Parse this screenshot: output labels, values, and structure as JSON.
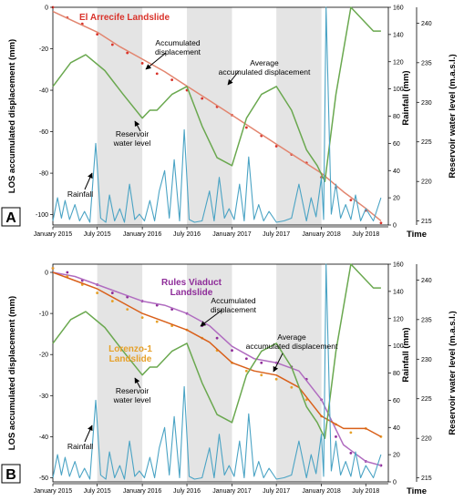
{
  "chart_data": [
    {
      "panel_label": "A",
      "type": "line",
      "title": "El Arrecife Landslide",
      "title_color": "#d9332b",
      "xlabel": "Time",
      "x_ticks": [
        "January 2015",
        "July 2015",
        "January 2016",
        "July 2016",
        "January 2017",
        "July 2017",
        "January 2018",
        "July 2018"
      ],
      "xlim": [
        "2015-01-01",
        "2018-10-01"
      ],
      "y_left": {
        "label": "LOS accumulated displacement (mm)",
        "range": [
          -105,
          0
        ],
        "ticks": [
          -100,
          -80,
          -60,
          -40,
          -20,
          0
        ]
      },
      "y_rain": {
        "label": "Rainfall (mm)",
        "range": [
          0,
          160
        ],
        "ticks": [
          0,
          20,
          40,
          60,
          80,
          100,
          120,
          140,
          160
        ]
      },
      "y_res": {
        "label": "Reservoir water level (m.a.s.l.)",
        "range": [
          214.5,
          242
        ],
        "ticks": [
          215,
          220,
          225,
          230,
          235,
          240
        ]
      },
      "shaded_periods": [
        [
          "2015-07-01",
          "2016-01-01"
        ],
        [
          "2016-07-01",
          "2017-01-01"
        ],
        [
          "2017-07-01",
          "2018-01-01"
        ]
      ],
      "grid": false,
      "series": [
        {
          "id": "disp",
          "name": "Accumulated displacement",
          "color": "#d9332b",
          "mode": "markers",
          "x": [
            "2015-01-01",
            "2015-03-01",
            "2015-05-01",
            "2015-07-01",
            "2015-09-01",
            "2015-11-01",
            "2016-01-01",
            "2016-03-01",
            "2016-05-01",
            "2016-07-01",
            "2016-09-01",
            "2016-11-01",
            "2017-01-01",
            "2017-03-01",
            "2017-05-01",
            "2017-07-01",
            "2017-09-01",
            "2017-11-01",
            "2018-01-01",
            "2018-03-01",
            "2018-05-01",
            "2018-07-01",
            "2018-09-01"
          ],
          "y": [
            0,
            -5,
            -8,
            -13,
            -18,
            -22,
            -27,
            -32,
            -35,
            -40,
            -44,
            -48,
            -52,
            -58,
            -62,
            -67,
            -71,
            -75,
            -82,
            -87,
            -93,
            -98,
            -104
          ]
        },
        {
          "id": "avg",
          "name": "Average accumulated displacement",
          "color": "#e2856f",
          "mode": "line",
          "x": [
            "2015-01-01",
            "2015-04-01",
            "2015-07-01",
            "2015-10-01",
            "2016-01-01",
            "2016-04-01",
            "2016-07-01",
            "2016-10-01",
            "2017-01-01",
            "2017-04-01",
            "2017-07-01",
            "2017-10-01",
            "2018-01-01",
            "2018-04-01",
            "2018-07-01",
            "2018-09-01"
          ],
          "y": [
            -2,
            -7,
            -12,
            -19,
            -25,
            -31,
            -38,
            -45,
            -52,
            -59,
            -66,
            -73,
            -80,
            -89,
            -97,
            -103
          ]
        },
        {
          "id": "res",
          "name": "Reservoir water level",
          "color": "#6aa84f",
          "axis": "y_res",
          "mode": "line",
          "x": [
            "2015-01-01",
            "2015-03-15",
            "2015-05-15",
            "2015-08-01",
            "2015-10-15",
            "2016-01-01",
            "2016-02-01",
            "2016-03-01",
            "2016-05-01",
            "2016-07-01",
            "2016-09-01",
            "2016-11-01",
            "2017-01-01",
            "2017-03-01",
            "2017-05-01",
            "2017-07-01",
            "2017-09-01",
            "2017-11-01",
            "2017-12-15",
            "2018-01-15",
            "2018-03-01",
            "2018-05-01",
            "2018-07-01",
            "2018-08-01",
            "2018-09-01"
          ],
          "y": [
            232,
            235,
            236,
            234,
            231,
            228,
            229,
            229,
            231,
            232,
            227,
            223,
            222,
            228,
            231,
            232,
            229,
            224,
            222,
            220,
            231,
            242,
            240,
            239,
            239
          ]
        },
        {
          "id": "rain",
          "name": "Rainfall",
          "color": "#4aa3c4",
          "axis": "y_rain",
          "mode": "line",
          "x": [
            "2015-01-01",
            "2015-01-20",
            "2015-02-05",
            "2015-02-20",
            "2015-03-10",
            "2015-04-01",
            "2015-04-20",
            "2015-05-10",
            "2015-06-01",
            "2015-06-25",
            "2015-07-15",
            "2015-08-05",
            "2015-08-20",
            "2015-09-10",
            "2015-10-01",
            "2015-10-20",
            "2015-11-10",
            "2015-12-01",
            "2015-12-20",
            "2016-01-10",
            "2016-02-01",
            "2016-02-20",
            "2016-03-10",
            "2016-04-01",
            "2016-04-20",
            "2016-05-10",
            "2016-06-01",
            "2016-06-20",
            "2016-07-10",
            "2016-08-01",
            "2016-09-01",
            "2016-10-01",
            "2016-10-20",
            "2016-11-10",
            "2016-12-01",
            "2016-12-20",
            "2017-01-10",
            "2017-02-01",
            "2017-02-20",
            "2017-03-10",
            "2017-04-01",
            "2017-04-20",
            "2017-05-10",
            "2017-06-01",
            "2017-07-01",
            "2017-08-01",
            "2017-09-01",
            "2017-10-01",
            "2017-11-01",
            "2017-11-20",
            "2017-12-10",
            "2018-01-01",
            "2018-01-10",
            "2018-01-20",
            "2018-02-10",
            "2018-03-01",
            "2018-03-20",
            "2018-04-10",
            "2018-05-01",
            "2018-05-20",
            "2018-06-10",
            "2018-07-01",
            "2018-08-01",
            "2018-09-01"
          ],
          "y": [
            3,
            20,
            5,
            18,
            4,
            15,
            3,
            10,
            2,
            60,
            5,
            2,
            22,
            3,
            12,
            2,
            30,
            4,
            8,
            3,
            18,
            3,
            25,
            40,
            5,
            48,
            3,
            70,
            4,
            2,
            3,
            25,
            3,
            35,
            5,
            12,
            4,
            30,
            3,
            50,
            4,
            15,
            3,
            10,
            2,
            3,
            5,
            30,
            3,
            20,
            6,
            35,
            4,
            160,
            8,
            30,
            5,
            15,
            4,
            22,
            3,
            12,
            3,
            20
          ]
        }
      ],
      "annotations": [
        "Accumulated displacement",
        "Average accumulated displacement",
        "Reservoir water level",
        "Rainfall"
      ]
    },
    {
      "panel_label": "B",
      "type": "line",
      "title": "Rules Viaduct Landslide",
      "title_color": "#8e2c99",
      "title2": "Lorenzo-1 Landslide",
      "title2_color": "#e6a12a",
      "xlabel": "Time",
      "x_ticks": [
        "January 2015",
        "July 2015",
        "January 2016",
        "July 2016",
        "January 2017",
        "July 2017",
        "January 2018",
        "July 2018"
      ],
      "xlim": [
        "2015-01-01",
        "2018-10-01"
      ],
      "y_left": {
        "label": "LOS accumulated displacement (mm)",
        "range": [
          -51,
          2
        ],
        "ticks": [
          -50,
          -40,
          -30,
          -20,
          -10,
          0
        ]
      },
      "y_rain": {
        "label": "Rainfall (mm)",
        "range": [
          0,
          160
        ],
        "ticks": [
          0,
          20,
          40,
          60,
          80,
          100,
          120,
          140,
          160
        ]
      },
      "y_res": {
        "label": "Reservoir water level (m.a.s.l.)",
        "range": [
          214.5,
          242
        ],
        "ticks": [
          215,
          220,
          225,
          230,
          235,
          240
        ]
      },
      "shaded_periods": [
        [
          "2015-07-01",
          "2016-01-01"
        ],
        [
          "2016-07-01",
          "2017-01-01"
        ],
        [
          "2017-07-01",
          "2018-01-01"
        ]
      ],
      "grid": false,
      "series": [
        {
          "id": "rules_pts",
          "name": "Rules Viaduct accumulated displacement",
          "color": "#8e2c99",
          "mode": "markers",
          "x": [
            "2015-01-01",
            "2015-03-01",
            "2015-05-01",
            "2015-07-01",
            "2015-09-01",
            "2015-11-01",
            "2016-01-01",
            "2016-03-01",
            "2016-05-01",
            "2016-07-01",
            "2016-09-01",
            "2016-11-01",
            "2017-01-01",
            "2017-03-01",
            "2017-05-01",
            "2017-07-01",
            "2017-09-01",
            "2017-11-01",
            "2018-01-01",
            "2018-03-01",
            "2018-05-01",
            "2018-07-01",
            "2018-09-01"
          ],
          "y": [
            1,
            0,
            -2,
            -3,
            -5,
            -6,
            -7,
            -8,
            -9,
            -10,
            -13,
            -16,
            -19,
            -21,
            -22,
            -22,
            -23,
            -26,
            -31,
            -40,
            -44,
            -46,
            -47
          ]
        },
        {
          "id": "rules_avg",
          "name": "Rules Viaduct average accumulated displacement",
          "color": "#b06cc0",
          "mode": "line",
          "x": [
            "2015-01-01",
            "2015-04-01",
            "2015-07-01",
            "2015-10-01",
            "2016-01-01",
            "2016-04-01",
            "2016-07-01",
            "2016-10-01",
            "2017-01-01",
            "2017-04-01",
            "2017-07-01",
            "2017-10-01",
            "2018-01-01",
            "2018-04-01",
            "2018-07-01",
            "2018-09-01"
          ],
          "y": [
            0,
            -1,
            -3,
            -5,
            -7,
            -8,
            -10,
            -13,
            -18,
            -21,
            -22,
            -24,
            -31,
            -42,
            -46,
            -47
          ]
        },
        {
          "id": "lor_pts",
          "name": "Lorenzo-1 accumulated displacement",
          "color": "#e6a12a",
          "mode": "markers",
          "x": [
            "2015-01-01",
            "2015-03-01",
            "2015-05-01",
            "2015-07-01",
            "2015-09-01",
            "2015-11-01",
            "2016-01-01",
            "2016-03-01",
            "2016-05-01",
            "2016-07-01",
            "2016-09-01",
            "2016-11-01",
            "2017-01-01",
            "2017-03-01",
            "2017-05-01",
            "2017-07-01",
            "2017-09-01",
            "2017-11-01",
            "2018-01-01",
            "2018-03-01",
            "2018-05-01",
            "2018-07-01",
            "2018-09-01"
          ],
          "y": [
            1,
            -1,
            -3,
            -5,
            -7,
            -9,
            -11,
            -12,
            -13,
            -14,
            -16,
            -19,
            -22,
            -24,
            -25,
            -26,
            -28,
            -31,
            -35,
            -37,
            -39,
            -38,
            -40
          ]
        },
        {
          "id": "lor_avg",
          "name": "Lorenzo-1 average accumulated displacement",
          "color": "#d9601a",
          "mode": "line",
          "x": [
            "2015-01-01",
            "2015-04-01",
            "2015-07-01",
            "2015-10-01",
            "2016-01-01",
            "2016-04-01",
            "2016-07-01",
            "2016-10-01",
            "2017-01-01",
            "2017-04-01",
            "2017-07-01",
            "2017-10-01",
            "2018-01-01",
            "2018-04-01",
            "2018-07-01",
            "2018-09-01"
          ],
          "y": [
            0,
            -2,
            -4,
            -7,
            -10,
            -12,
            -14,
            -17,
            -22,
            -24,
            -25,
            -28,
            -35,
            -38,
            -38,
            -40
          ]
        },
        {
          "id": "res",
          "name": "Reservoir water level",
          "color": "#6aa84f",
          "axis": "y_res",
          "mode": "line",
          "x": [
            "2015-01-01",
            "2015-03-15",
            "2015-05-15",
            "2015-08-01",
            "2015-10-15",
            "2016-01-01",
            "2016-02-01",
            "2016-03-01",
            "2016-05-01",
            "2016-07-01",
            "2016-09-01",
            "2016-11-01",
            "2017-01-01",
            "2017-03-01",
            "2017-05-01",
            "2017-07-01",
            "2017-09-01",
            "2017-11-01",
            "2017-12-15",
            "2018-01-15",
            "2018-03-01",
            "2018-05-01",
            "2018-07-01",
            "2018-08-01",
            "2018-09-01"
          ],
          "y": [
            232,
            235,
            236,
            234,
            231,
            228,
            229,
            229,
            231,
            232,
            227,
            223,
            222,
            228,
            231,
            232,
            229,
            224,
            222,
            220,
            231,
            242,
            240,
            239,
            239
          ]
        },
        {
          "id": "rain",
          "name": "Rainfall",
          "color": "#4aa3c4",
          "axis": "y_rain",
          "mode": "line",
          "x": [
            "2015-01-01",
            "2015-01-20",
            "2015-02-05",
            "2015-02-20",
            "2015-03-10",
            "2015-04-01",
            "2015-04-20",
            "2015-05-10",
            "2015-06-01",
            "2015-06-25",
            "2015-07-15",
            "2015-08-05",
            "2015-08-20",
            "2015-09-10",
            "2015-10-01",
            "2015-10-20",
            "2015-11-10",
            "2015-12-01",
            "2015-12-20",
            "2016-01-10",
            "2016-02-01",
            "2016-02-20",
            "2016-03-10",
            "2016-04-01",
            "2016-04-20",
            "2016-05-10",
            "2016-06-01",
            "2016-06-20",
            "2016-07-10",
            "2016-08-01",
            "2016-09-01",
            "2016-10-01",
            "2016-10-20",
            "2016-11-10",
            "2016-12-01",
            "2016-12-20",
            "2017-01-10",
            "2017-02-01",
            "2017-02-20",
            "2017-03-10",
            "2017-04-01",
            "2017-04-20",
            "2017-05-10",
            "2017-06-01",
            "2017-07-01",
            "2017-08-01",
            "2017-09-01",
            "2017-10-01",
            "2017-11-01",
            "2017-11-20",
            "2017-12-10",
            "2018-01-01",
            "2018-01-10",
            "2018-01-20",
            "2018-02-10",
            "2018-03-01",
            "2018-03-20",
            "2018-04-10",
            "2018-05-01",
            "2018-05-20",
            "2018-06-10",
            "2018-07-01",
            "2018-08-01",
            "2018-09-01"
          ],
          "y": [
            3,
            20,
            5,
            18,
            4,
            15,
            3,
            10,
            2,
            60,
            5,
            2,
            22,
            3,
            12,
            2,
            30,
            4,
            8,
            3,
            18,
            3,
            25,
            40,
            5,
            48,
            3,
            70,
            4,
            2,
            3,
            25,
            3,
            35,
            5,
            12,
            4,
            30,
            3,
            50,
            4,
            15,
            3,
            10,
            2,
            3,
            5,
            30,
            3,
            20,
            6,
            35,
            4,
            160,
            8,
            30,
            5,
            15,
            4,
            22,
            3,
            12,
            3,
            20
          ]
        }
      ],
      "annotations": [
        "Accumulated displacement",
        "Average accumulated displacement",
        "Reservoir water level",
        "Rainfall"
      ]
    }
  ]
}
